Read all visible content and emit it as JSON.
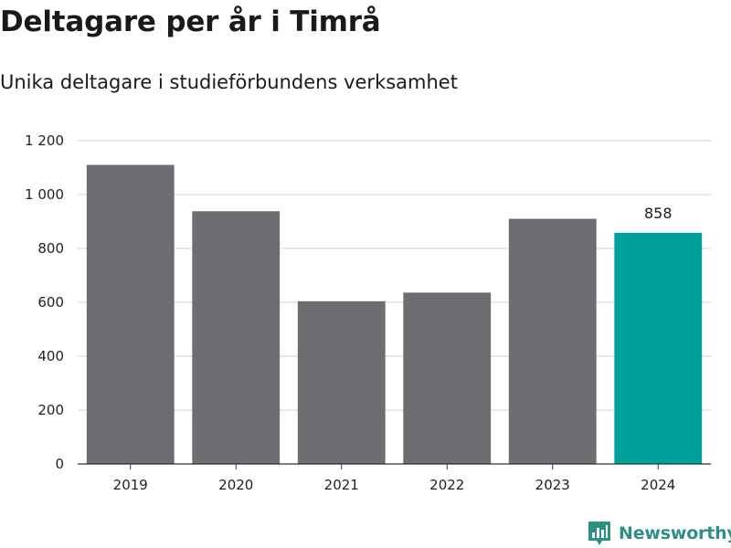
{
  "title": "Deltagare per år i Timrå",
  "subtitle": "Unika deltagare i studieförbundens verksamhet",
  "brand": {
    "name": "Newsworthy",
    "icon": "newsworthy-logo-icon"
  },
  "colors": {
    "bar": "#6e6d72",
    "highlight": "#00a19a",
    "grid": "#dcdcdc",
    "axis": "#333333",
    "brand": "#2f8f87"
  },
  "chart_data": {
    "type": "bar",
    "title": "Deltagare per år i Timrå",
    "subtitle": "Unika deltagare i studieförbundens verksamhet",
    "xlabel": "",
    "ylabel": "",
    "categories": [
      "2019",
      "2020",
      "2021",
      "2022",
      "2023",
      "2024"
    ],
    "values": [
      1110,
      938,
      604,
      636,
      910,
      858
    ],
    "highlight_index": 5,
    "data_labels": {
      "2024": "858"
    },
    "ylim": [
      0,
      1200
    ],
    "yticks": [
      0,
      200,
      400,
      600,
      800,
      1000,
      1200
    ],
    "ytick_labels": [
      "0",
      "200",
      "400",
      "600",
      "800",
      "1 000",
      "1 200"
    ],
    "grid": true,
    "legend": "none"
  }
}
